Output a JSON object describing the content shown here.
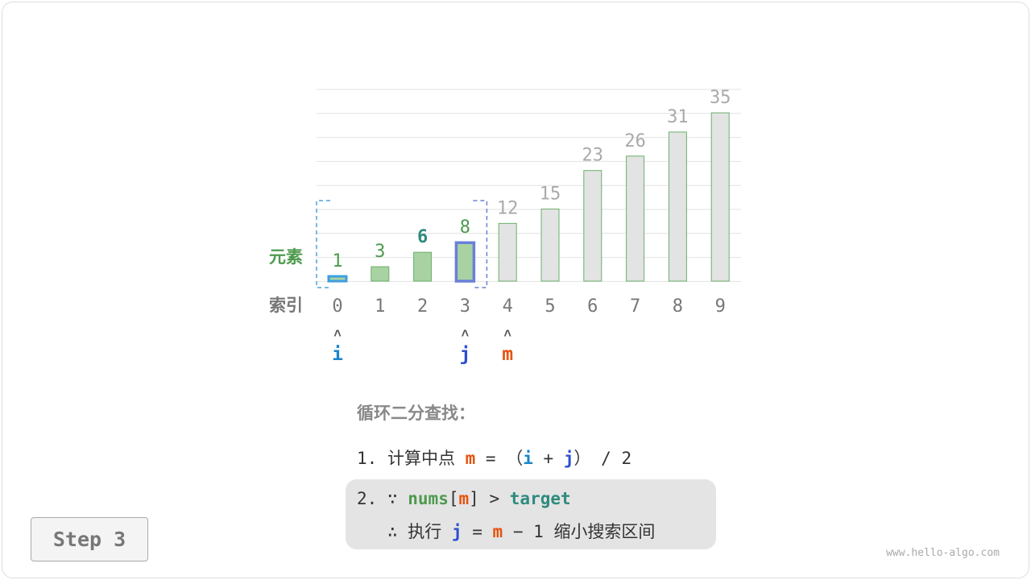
{
  "labels": {
    "element": "元素",
    "index": "索引"
  },
  "chart_data": {
    "type": "bar",
    "categories": [
      "0",
      "1",
      "2",
      "3",
      "4",
      "5",
      "6",
      "7",
      "8",
      "9"
    ],
    "values": [
      1,
      3,
      6,
      8,
      12,
      15,
      23,
      26,
      31,
      35
    ],
    "active_range": [
      0,
      3
    ],
    "target_label_index": 2,
    "grid": true
  },
  "pointers": [
    {
      "name": "i",
      "index": 0
    },
    {
      "name": "j",
      "index": 3
    },
    {
      "name": "m",
      "index": 4
    }
  ],
  "arrow": "˄",
  "text": {
    "title": "循环二分查找：",
    "l1_num": "1.",
    "l1_text": "计算中点",
    "m": "m",
    "eq": "=",
    "lp": "（",
    "i": "i",
    "plus": "+",
    "j": "j",
    "rp": "）",
    "div": "/ 2",
    "l2_num": "2.",
    "because": "∵",
    "nums": "nums",
    "lb": "[",
    "rb": "]",
    "gt": ">",
    "target": "target",
    "therefore": "∴",
    "exec": "执行",
    "minus": "− 1",
    "narrow": "缩小搜索区间"
  },
  "step_label": "Step 3",
  "watermark": "www.hello-algo.com",
  "colors": {
    "green": "#4e9a4e",
    "teal": "#2e8b7e",
    "i": "#1a86c8",
    "j": "#2b4fd0",
    "m": "#e6530f",
    "bar_active": "#a9d2a3",
    "bar_inactive": "#e3e3e3"
  }
}
